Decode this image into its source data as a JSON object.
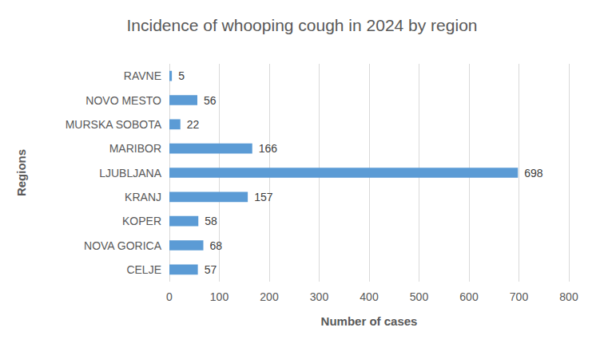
{
  "chart_data": {
    "type": "bar",
    "title": "Incidence of whooping cough in 2024 by region",
    "x_label": "Number of cases",
    "y_label": "Regions",
    "categories": [
      "RAVNE",
      "NOVO MESTO",
      "MURSKA SOBOTA",
      "MARIBOR",
      "LJUBLJANA",
      "KRANJ",
      "KOPER",
      "NOVA GORICA",
      "CELJE"
    ],
    "values": [
      5,
      56,
      22,
      166,
      698,
      157,
      58,
      68,
      57
    ],
    "color": "#5b9bd5",
    "xlim": [
      0,
      800
    ],
    "xticks": [
      0,
      100,
      200,
      300,
      400,
      500,
      600,
      700,
      800
    ],
    "grid": true,
    "orientation": "horizontal",
    "data_labels": true
  }
}
